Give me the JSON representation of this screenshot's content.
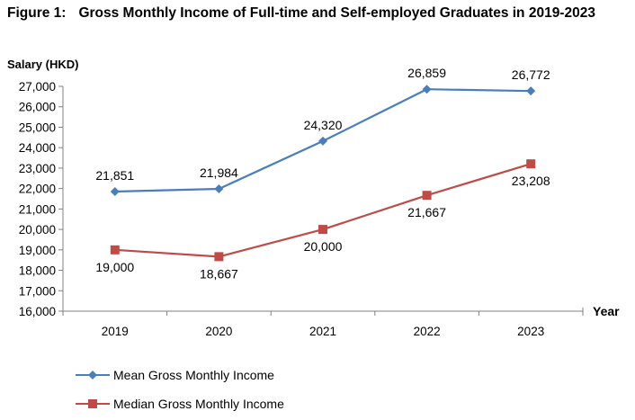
{
  "figure": {
    "number": "Figure 1:",
    "title": "Gross Monthly Income of Full-time and Self-employed Graduates in 2019-2023"
  },
  "chart_data": {
    "type": "line",
    "title": "Gross Monthly Income of Full-time and Self-employed Graduates in 2019-2023",
    "xlabel": "Year",
    "ylabel": "Salary (HKD)",
    "categories": [
      "2019",
      "2020",
      "2021",
      "2022",
      "2023"
    ],
    "ylim": [
      16000,
      27000
    ],
    "yticks": [
      "16,000",
      "17,000",
      "18,000",
      "19,000",
      "20,000",
      "21,000",
      "22,000",
      "23,000",
      "24,000",
      "25,000",
      "26,000",
      "27,000"
    ],
    "grid": false,
    "legend_position": "bottom-left",
    "series": [
      {
        "name": "Mean Gross Monthly Income",
        "values": [
          21851,
          21984,
          24320,
          26859,
          26772
        ],
        "labels": [
          "21,851",
          "21,984",
          "24,320",
          "26,859",
          "26,772"
        ],
        "color": "#4a7ebb",
        "marker": "diamond",
        "label_position": "above"
      },
      {
        "name": "Median Gross Monthly Income",
        "values": [
          19000,
          18667,
          20000,
          21667,
          23208
        ],
        "labels": [
          "19,000",
          "18,667",
          "20,000",
          "21,667",
          "23,208"
        ],
        "color": "#be4b48",
        "marker": "square",
        "label_position": "below"
      }
    ]
  }
}
